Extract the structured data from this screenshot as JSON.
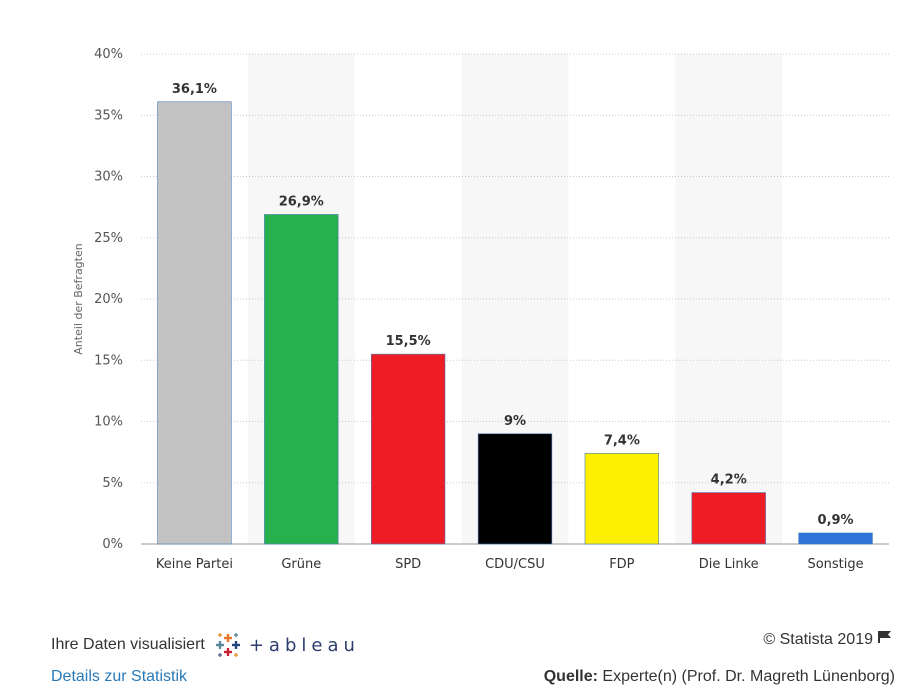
{
  "chart_data": {
    "type": "bar",
    "categories": [
      "Keine Partei",
      "Grüne",
      "SPD",
      "CDU/CSU",
      "FDP",
      "Die Linke",
      "Sonstige"
    ],
    "values": [
      36.1,
      26.9,
      15.5,
      9,
      7.4,
      4.2,
      0.9
    ],
    "data_labels": [
      "36,1%",
      "26,9%",
      "15,5%",
      "9%",
      "7,4%",
      "4,2%",
      "0,9%"
    ],
    "colors": [
      "#c2c2c2",
      "#27b14d",
      "#ee1c25",
      "#000000",
      "#ffef00",
      "#ee1c25",
      "#2e74d8"
    ],
    "title": "",
    "xlabel": "",
    "ylabel": "Anteil der Befragten",
    "ylim": [
      0,
      40
    ],
    "yticks": [
      0,
      5,
      10,
      15,
      20,
      25,
      30,
      35,
      40
    ],
    "ytick_labels": [
      "0%",
      "5%",
      "10%",
      "15%",
      "20%",
      "25%",
      "30%",
      "35%",
      "40%"
    ],
    "grid": true,
    "legend": "none"
  },
  "footer": {
    "tableau_prefix": "Ihre Daten visualisiert",
    "tableau_word": "+ableau",
    "copyright": "© Statista 2019",
    "details_link": "Details zur Statistik",
    "source_label": "Quelle:",
    "source_text": " Experte(n) (Prof. Dr. Magreth Lünenborg)"
  }
}
